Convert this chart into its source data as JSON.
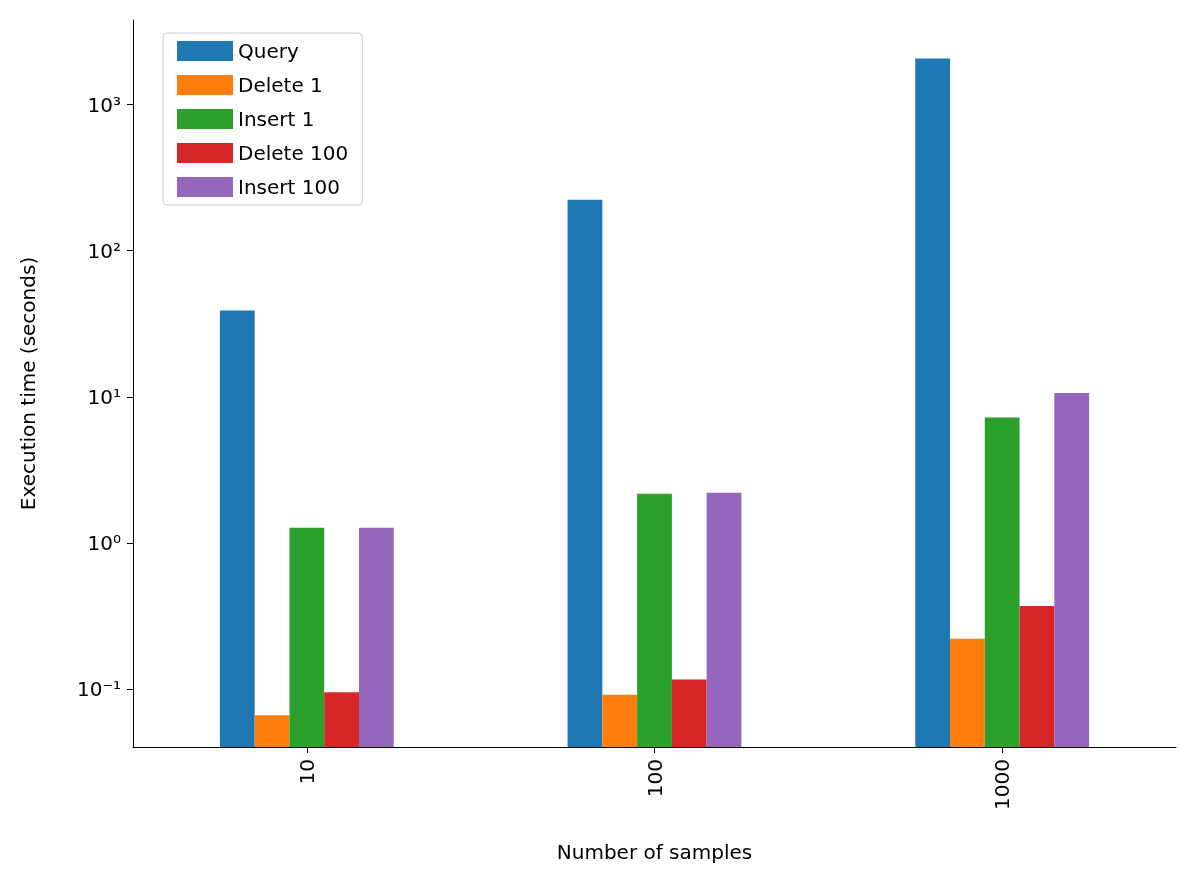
{
  "chart_data": {
    "type": "bar",
    "xlabel": "Number of samples",
    "ylabel": "Execution time (seconds)",
    "categories": [
      "10",
      "100",
      "1000"
    ],
    "series": [
      {
        "name": "Query",
        "color": "#1f77b4",
        "values": [
          39,
          223,
          2070
        ]
      },
      {
        "name": "Delete 1",
        "color": "#ff7f0e",
        "values": [
          0.066,
          0.091,
          0.22
        ]
      },
      {
        "name": "Insert 1",
        "color": "#2ca02c",
        "values": [
          1.27,
          2.17,
          7.2
        ]
      },
      {
        "name": "Delete 100",
        "color": "#d62728",
        "values": [
          0.095,
          0.116,
          0.37
        ]
      },
      {
        "name": "Insert 100",
        "color": "#9467bd",
        "values": [
          1.27,
          2.2,
          10.6
        ]
      }
    ],
    "log": "y",
    "ylim": [
      0.04,
      3800
    ],
    "yticks": [
      {
        "value": 0.1,
        "label": "10⁻¹"
      },
      {
        "value": 1,
        "label": "10⁰"
      },
      {
        "value": 10,
        "label": "10¹"
      },
      {
        "value": 100,
        "label": "10²"
      },
      {
        "value": 1000,
        "label": "10³"
      }
    ],
    "grid": false,
    "legend": "top left"
  }
}
